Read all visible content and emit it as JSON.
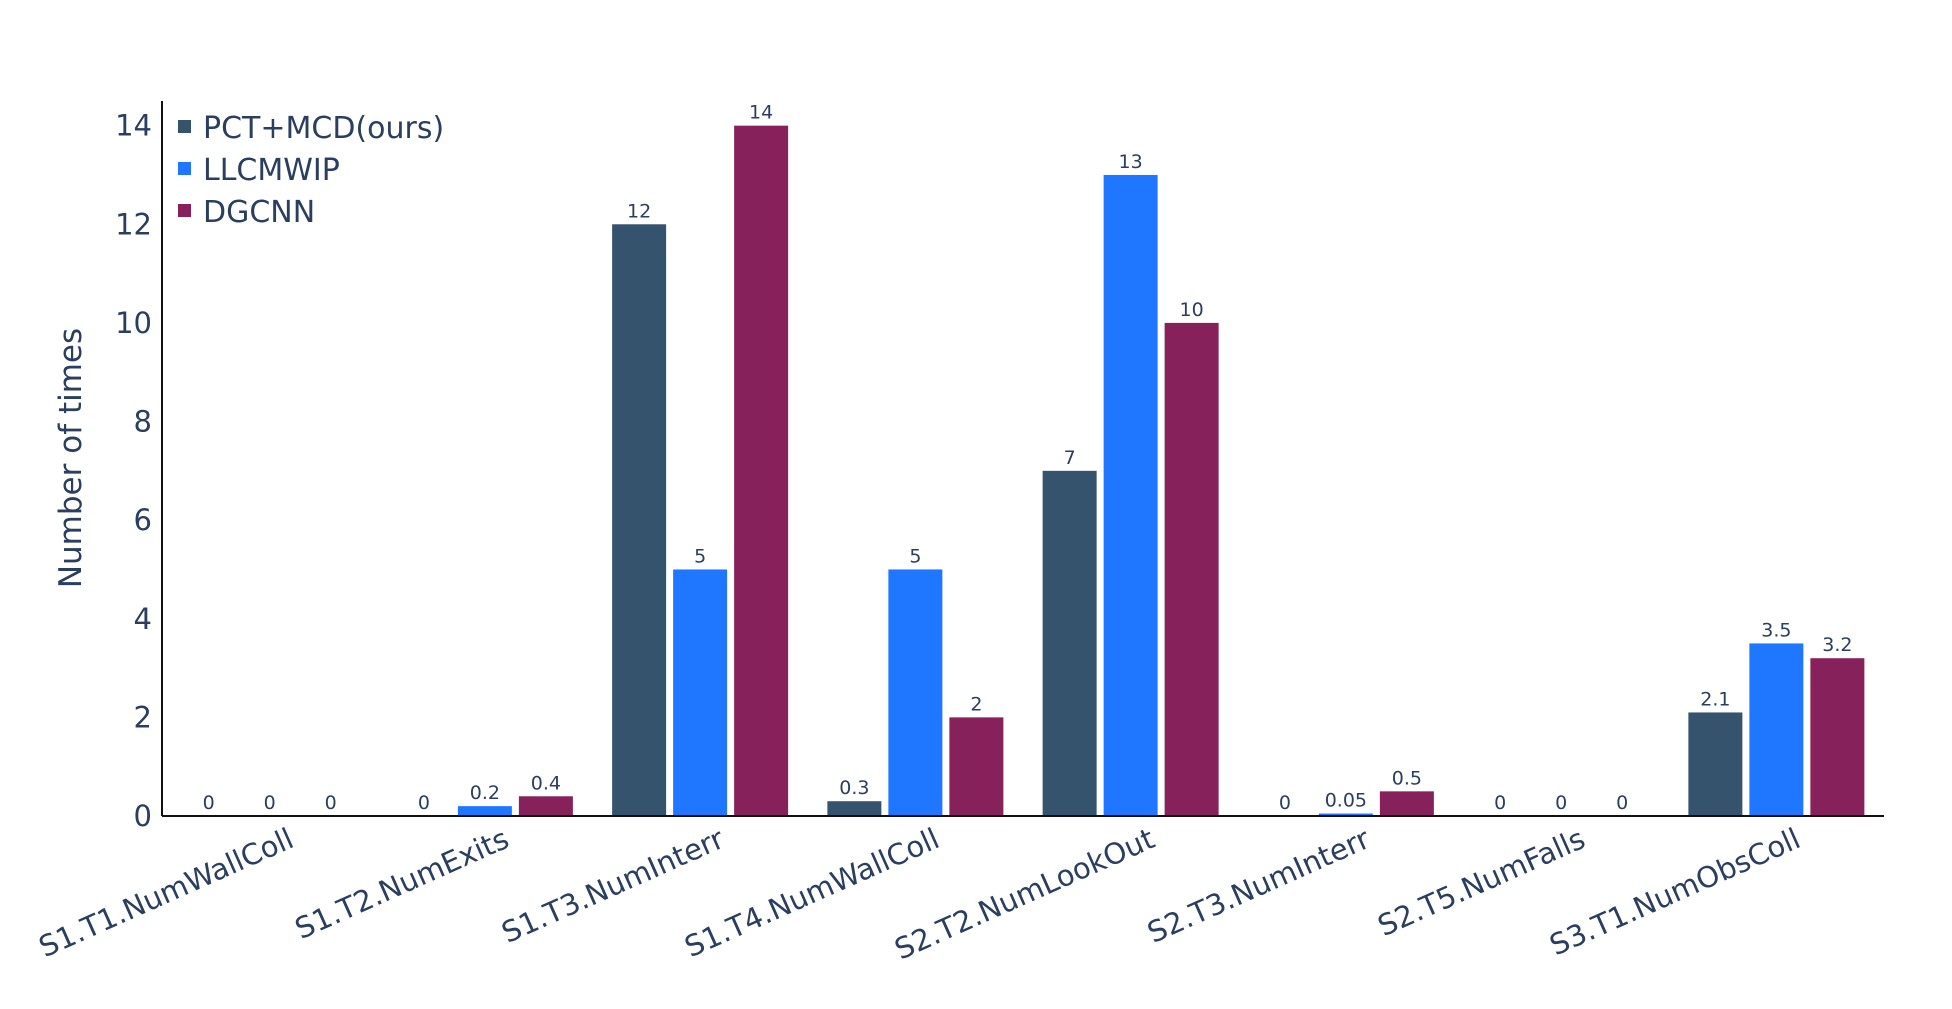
{
  "chart_data": {
    "type": "bar",
    "categories": [
      "S1.T1.NumWallColl",
      "S1.T2.NumExits",
      "S1.T3.NumInterr",
      "S1.T4.NumWallColl",
      "S2.T2.NumLookOut",
      "S2.T3.NumInterr",
      "S2.T5.NumFalls",
      "S3.T1.NumObsColl"
    ],
    "series": [
      {
        "name": "PCT+MCD(ours)",
        "color": "#36536e",
        "values": [
          0,
          0,
          12,
          0.3,
          7,
          0,
          0,
          2.1
        ],
        "labels": [
          "0",
          "0",
          "12",
          "0.3",
          "7",
          "0",
          "0",
          "2.1"
        ]
      },
      {
        "name": "LLCMWIP",
        "color": "#1f77ff",
        "values": [
          0,
          0.2,
          5,
          5,
          13,
          0.05,
          0,
          3.5
        ],
        "labels": [
          "0",
          "0.2",
          "5",
          "5",
          "13",
          "0.05",
          "0",
          "3.5"
        ]
      },
      {
        "name": "DGCNN",
        "color": "#86215b",
        "values": [
          0,
          0.4,
          14,
          2,
          10,
          0.5,
          0,
          3.2
        ],
        "labels": [
          "0",
          "0.4",
          "14",
          "2",
          "10",
          "0.5",
          "0",
          "3.2"
        ]
      }
    ],
    "ylabel": "Number of times",
    "xlabel": "",
    "ylim": [
      0,
      14.5
    ],
    "yticks": [
      "0",
      "2",
      "4",
      "6",
      "8",
      "10",
      "12",
      "14"
    ],
    "grid": false,
    "legend_position": "top-left"
  }
}
